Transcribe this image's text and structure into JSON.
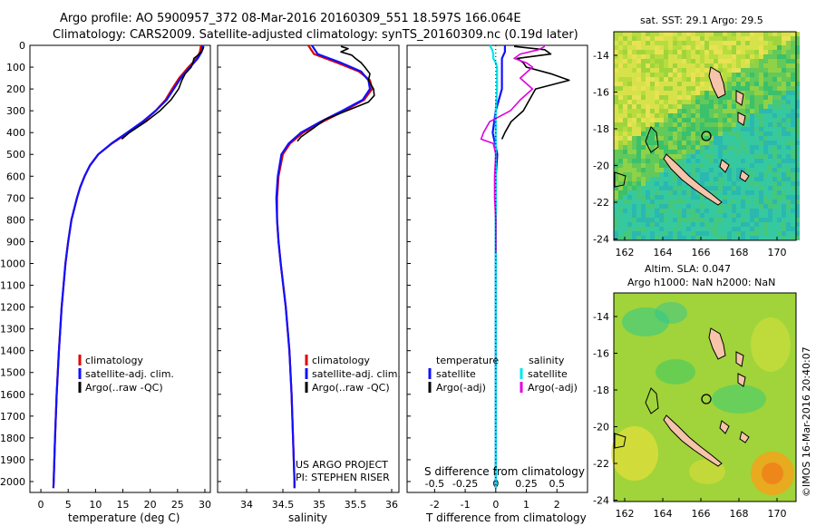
{
  "header": {
    "line1": "Argo profile: AO 5900957_372 08-Mar-2016 20160309_551 18.597S 166.064E",
    "line2": "Climatology: CARS2009. Satellite-adjusted climatology: synTS_20160309.nc (0.19d later)"
  },
  "colors": {
    "climatology": "#e00000",
    "satellite": "#1010ff",
    "argo": "#000000",
    "sat_salinity": "#00e5ee",
    "argo_salinity_adj": "#e000e0"
  },
  "depth_axis": {
    "ticks": [
      "0",
      "100",
      "200",
      "300",
      "400",
      "500",
      "600",
      "700",
      "800",
      "900",
      "1000",
      "1100",
      "1200",
      "1300",
      "1400",
      "1500",
      "1600",
      "1700",
      "1800",
      "1900",
      "2000"
    ]
  },
  "chart_data": [
    {
      "type": "line",
      "name": "temperature",
      "xlabel": "temperature (deg C)",
      "xlim": [
        -2,
        31
      ],
      "ylim": [
        2050,
        0
      ],
      "xticks": [
        "0",
        "5",
        "10",
        "15",
        "20",
        "25",
        "30"
      ],
      "legend": [
        "climatology",
        "satellite-adj. clim.",
        "Argo(..raw -QC)"
      ],
      "series": [
        {
          "name": "climatology",
          "depth": [
            0,
            30,
            60,
            100,
            150,
            200,
            250,
            300,
            350,
            400,
            450,
            500,
            550,
            600,
            650,
            700,
            800,
            900,
            1000,
            1200,
            1400,
            1600,
            1800,
            2000,
            2030
          ],
          "values": [
            29.3,
            29.1,
            28.5,
            27.0,
            25.3,
            24.0,
            22.8,
            21.0,
            18.8,
            16.0,
            13.0,
            10.5,
            9.0,
            8.0,
            7.2,
            6.6,
            5.6,
            5.0,
            4.5,
            3.8,
            3.3,
            2.9,
            2.6,
            2.35,
            2.3
          ]
        },
        {
          "name": "satellite",
          "depth": [
            0,
            30,
            60,
            100,
            150,
            200,
            250,
            300,
            350,
            400,
            450,
            500,
            550,
            600,
            650,
            700,
            800,
            900,
            1000,
            1200,
            1400,
            1600,
            1800,
            2000,
            2030
          ],
          "values": [
            29.6,
            29.4,
            28.7,
            27.3,
            25.6,
            24.3,
            23.0,
            21.0,
            18.6,
            15.8,
            12.9,
            10.5,
            9.0,
            8.0,
            7.2,
            6.6,
            5.6,
            5.0,
            4.5,
            3.8,
            3.3,
            2.9,
            2.6,
            2.35,
            2.3
          ]
        },
        {
          "name": "argo",
          "depth": [
            5,
            20,
            40,
            60,
            80,
            100,
            130,
            160,
            200,
            250,
            300,
            350,
            400,
            430
          ],
          "values": [
            29.8,
            29.6,
            29.0,
            28.0,
            27.8,
            27.5,
            26.4,
            25.8,
            25.2,
            23.8,
            21.8,
            19.2,
            16.2,
            14.8
          ]
        }
      ]
    },
    {
      "type": "line",
      "name": "salinity",
      "xlabel": "salinity",
      "xlim": [
        33.6,
        36.1
      ],
      "ylim": [
        2050,
        0
      ],
      "xticks": [
        "34",
        "34.5",
        "35",
        "35.5",
        "36"
      ],
      "legend": [
        "climatology",
        "satellite-adj. clim.",
        "Argo(..raw -QC)"
      ],
      "annotation": [
        "US ARGO PROJECT",
        "PI: STEPHEN RISER"
      ],
      "series": [
        {
          "name": "climatology",
          "depth": [
            0,
            40,
            80,
            120,
            160,
            200,
            250,
            300,
            350,
            400,
            450,
            500,
            600,
            700,
            800,
            900,
            1000,
            1200,
            1400,
            1600,
            1800,
            2000,
            2030
          ],
          "values": [
            34.85,
            34.93,
            35.25,
            35.55,
            35.7,
            35.73,
            35.62,
            35.35,
            35.05,
            34.78,
            34.6,
            34.5,
            34.44,
            34.42,
            34.42,
            34.44,
            34.47,
            34.54,
            34.59,
            34.62,
            34.64,
            34.66,
            34.66
          ]
        },
        {
          "name": "satellite",
          "depth": [
            0,
            40,
            80,
            120,
            160,
            200,
            250,
            300,
            350,
            400,
            450,
            500,
            600,
            700,
            800,
            900,
            1000,
            1200,
            1400,
            1600,
            1800,
            2000,
            2030
          ],
          "values": [
            34.9,
            34.98,
            35.3,
            35.58,
            35.68,
            35.7,
            35.6,
            35.32,
            35.02,
            34.75,
            34.58,
            34.48,
            34.43,
            34.41,
            34.42,
            34.44,
            34.47,
            34.54,
            34.59,
            34.62,
            34.64,
            34.66,
            34.66
          ]
        },
        {
          "name": "argo",
          "depth": [
            5,
            15,
            30,
            45,
            60,
            80,
            100,
            130,
            160,
            200,
            230,
            260,
            300,
            340,
            380,
            420,
            440
          ],
          "values": [
            35.3,
            35.4,
            35.3,
            35.45,
            35.5,
            35.58,
            35.63,
            35.7,
            35.68,
            35.75,
            35.76,
            35.68,
            35.38,
            35.08,
            34.92,
            34.75,
            34.7
          ]
        }
      ]
    },
    {
      "type": "line",
      "name": "difference",
      "xlabel": "T difference from climatology",
      "xlabel2": "S difference from climatology",
      "xlim": [
        -2.9,
        3.0
      ],
      "ylim": [
        2050,
        0
      ],
      "xticks": [
        "-2",
        "-1",
        "0",
        "1",
        "2"
      ],
      "xticks_top": [
        "-0.5",
        "-0.25",
        "0",
        "0.25",
        "0.5"
      ],
      "legend_t_title": "temperature",
      "legend_s_title": "salinity",
      "legend_t": [
        "satellite",
        "Argo(-adj)"
      ],
      "legend_s": [
        "satellite",
        "Argo(-adj)"
      ],
      "series": [
        {
          "name": "T satellite",
          "depth": [
            0,
            30,
            60,
            100,
            200,
            300,
            400,
            500,
            600,
            700,
            800,
            900,
            1000,
            1200,
            1500,
            1800,
            2030
          ],
          "values": [
            0.3,
            0.3,
            0.2,
            0.2,
            0.2,
            0.0,
            -0.1,
            0.05,
            0.0,
            0.0,
            0.0,
            0.0,
            0.0,
            0.0,
            0.0,
            0.0,
            0.0
          ]
        },
        {
          "name": "T argo",
          "depth": [
            5,
            20,
            40,
            60,
            80,
            100,
            130,
            160,
            200,
            250,
            300,
            350,
            400,
            430
          ],
          "values": [
            0.6,
            1.6,
            1.8,
            0.7,
            0.9,
            1.0,
            1.8,
            2.4,
            1.3,
            1.1,
            0.9,
            0.5,
            0.3,
            0.2
          ]
        },
        {
          "name": "S satellite",
          "depth": [
            0,
            20,
            40,
            60,
            80,
            100,
            200,
            300,
            400,
            500,
            600,
            700,
            800,
            900,
            1000,
            1200,
            1500,
            1800,
            2030
          ],
          "values": [
            -0.05,
            -0.03,
            -0.02,
            -0.02,
            0.0,
            0.01,
            0.01,
            0.0,
            0.0,
            0.0,
            0.0,
            0.0,
            0.0,
            0.0,
            0.0,
            0.0,
            0.0,
            0.0,
            0.0
          ]
        },
        {
          "name": "S argo",
          "depth": [
            5,
            20,
            40,
            60,
            80,
            100,
            150,
            200,
            250,
            300,
            350,
            400,
            430,
            450,
            500,
            600,
            700,
            800,
            900,
            950
          ],
          "values": [
            0.4,
            0.35,
            0.2,
            0.15,
            0.25,
            0.3,
            0.2,
            0.3,
            0.2,
            0.12,
            -0.05,
            -0.1,
            -0.12,
            -0.02,
            0.0,
            -0.01,
            -0.01,
            0.0,
            0.0,
            0.0
          ]
        }
      ]
    },
    {
      "type": "heatmap",
      "name": "satellite SST map",
      "title": "sat. SST: 29.1  Argo: 29.5",
      "xticks": [
        "162",
        "164",
        "166",
        "168",
        "170"
      ],
      "yticks": [
        "-14",
        "-16",
        "-18",
        "-20",
        "-22",
        "-24"
      ],
      "float_position": {
        "lon": 166.064,
        "lat": -18.597
      }
    },
    {
      "type": "heatmap",
      "name": "altimeter SLA map",
      "title_line1": "Altim. SLA: 0.047",
      "title_line2": "Argo h1000: NaN h2000: NaN",
      "xticks": [
        "162",
        "164",
        "166",
        "168",
        "170"
      ],
      "yticks": [
        "-14",
        "-16",
        "-18",
        "-20",
        "-22",
        "-24"
      ],
      "float_position": {
        "lon": 166.064,
        "lat": -18.597
      }
    }
  ],
  "footer_vertical": "©IMOS 16-Mar-2016 20:40:07"
}
